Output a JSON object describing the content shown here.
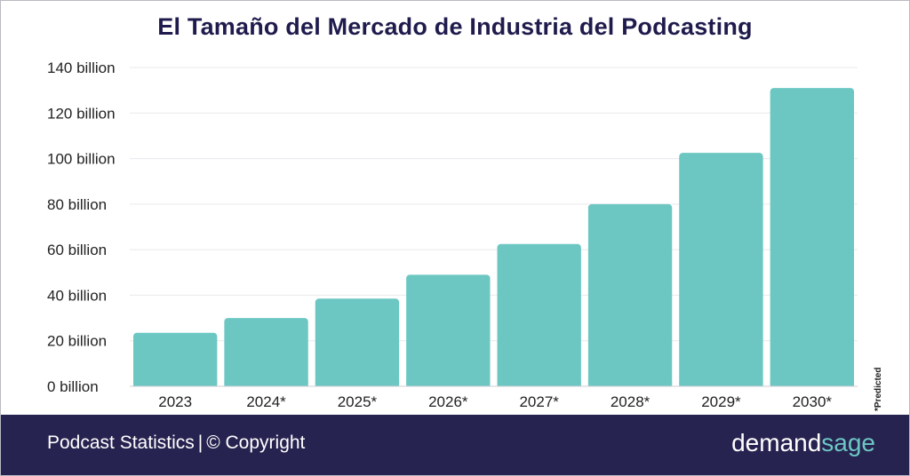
{
  "footer": {
    "left_text": "Podcast Statistics",
    "separator": "|",
    "copyright": "© Copyright",
    "brand_main": "demand",
    "brand_accent": "sage"
  },
  "note": "*Predicted",
  "colors": {
    "bar": "#6cc7c3",
    "title": "#1f1c4d",
    "footer_bg": "#272350",
    "brand_accent": "#6cc7c3"
  },
  "chart_data": {
    "type": "bar",
    "title": "El Tamaño del Mercado de Industria del Podcasting",
    "xlabel": "",
    "ylabel": "",
    "categories": [
      "2023",
      "2024*",
      "2025*",
      "2026*",
      "2027*",
      "2028*",
      "2029*",
      "2030*"
    ],
    "values": [
      23.5,
      30,
      38.5,
      49,
      62.5,
      80,
      102.5,
      131
    ],
    "ylim": [
      0,
      140
    ],
    "yticks": [
      0,
      20,
      40,
      60,
      80,
      100,
      120,
      140
    ],
    "ytick_labels": [
      "0 billion",
      "20 billion",
      "40 billion",
      "60 billion",
      "80 billion",
      "100 billion",
      "120 billion",
      "140 billion"
    ],
    "grid": true,
    "legend": "none"
  }
}
